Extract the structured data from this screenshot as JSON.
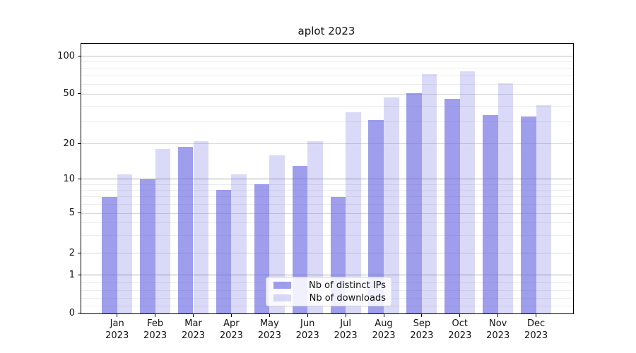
{
  "chart_data": {
    "type": "bar",
    "title": "aplot 2023",
    "year_label": "2023",
    "categories": [
      "Jan",
      "Feb",
      "Mar",
      "Apr",
      "May",
      "Jun",
      "Jul",
      "Aug",
      "Sep",
      "Oct",
      "Nov",
      "Dec"
    ],
    "series": [
      {
        "name": "Nb of distinct IPs",
        "color": "rgba(98,98,226,0.62)",
        "values": [
          7,
          10,
          19,
          8,
          9,
          13,
          7,
          31,
          51,
          46,
          34,
          33
        ]
      },
      {
        "name": "Nb of downloads",
        "color": "rgba(98,98,226,0.235)",
        "values": [
          11,
          18,
          21,
          11,
          16,
          21,
          36,
          47,
          72,
          76,
          61,
          41
        ]
      }
    ],
    "y_axis": {
      "scale": "symlog",
      "ticks": [
        0,
        1,
        2,
        5,
        10,
        20,
        50,
        100
      ],
      "minor_ticks": [
        0.2,
        0.4,
        0.6,
        0.8,
        3,
        4,
        6,
        7,
        8,
        9,
        30,
        40,
        60,
        70,
        80,
        90
      ],
      "ylim": [
        0,
        124
      ]
    },
    "xlabel": "",
    "ylabel": "",
    "grid": true,
    "legend_position": "lower-center",
    "colors": {
      "grid_major_pow10": "#ababab",
      "grid_major_100": "#c2c2c2",
      "grid_major_other": "#d8d8d8",
      "grid_minor": "#ededed",
      "axis": "#000000"
    }
  }
}
